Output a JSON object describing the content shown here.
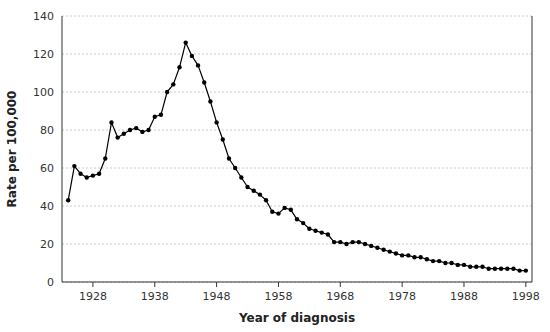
{
  "chart_data": {
    "type": "line",
    "x": [
      1924,
      1925,
      1926,
      1927,
      1928,
      1929,
      1930,
      1931,
      1932,
      1933,
      1934,
      1935,
      1936,
      1937,
      1938,
      1939,
      1940,
      1941,
      1942,
      1943,
      1944,
      1945,
      1946,
      1947,
      1948,
      1949,
      1950,
      1951,
      1952,
      1953,
      1954,
      1955,
      1956,
      1957,
      1958,
      1959,
      1960,
      1961,
      1962,
      1963,
      1964,
      1965,
      1966,
      1967,
      1968,
      1969,
      1970,
      1971,
      1972,
      1973,
      1974,
      1975,
      1976,
      1977,
      1978,
      1979,
      1980,
      1981,
      1982,
      1983,
      1984,
      1985,
      1986,
      1987,
      1988,
      1989,
      1990,
      1991,
      1992,
      1993,
      1994,
      1995,
      1996,
      1997,
      1998
    ],
    "values": [
      43,
      61,
      57,
      55,
      56,
      57,
      65,
      84,
      76,
      78,
      80,
      81,
      79,
      80,
      87,
      88,
      100,
      104,
      113,
      126,
      119,
      114,
      105,
      95,
      84,
      75,
      65,
      60,
      55,
      50,
      48,
      46,
      43,
      37,
      36,
      39,
      38,
      33,
      31,
      28,
      27,
      26,
      25,
      21,
      21,
      20,
      21,
      21,
      20,
      19,
      18,
      17,
      16,
      15,
      14,
      14,
      13,
      13,
      12,
      11,
      11,
      10,
      10,
      9,
      9,
      8,
      8,
      8,
      7,
      7,
      7,
      7,
      7,
      6,
      6
    ],
    "xlabel": "Year of diagnosis",
    "ylabel": "Rate per 100,000",
    "xlim": [
      1923,
      1999
    ],
    "ylim": [
      0,
      140
    ],
    "xticks": [
      1928,
      1938,
      1948,
      1958,
      1968,
      1978,
      1988,
      1998
    ],
    "yticks": [
      0,
      20,
      40,
      60,
      80,
      100,
      120,
      140
    ],
    "color": "#000000",
    "marker": "circle",
    "grid": true
  }
}
